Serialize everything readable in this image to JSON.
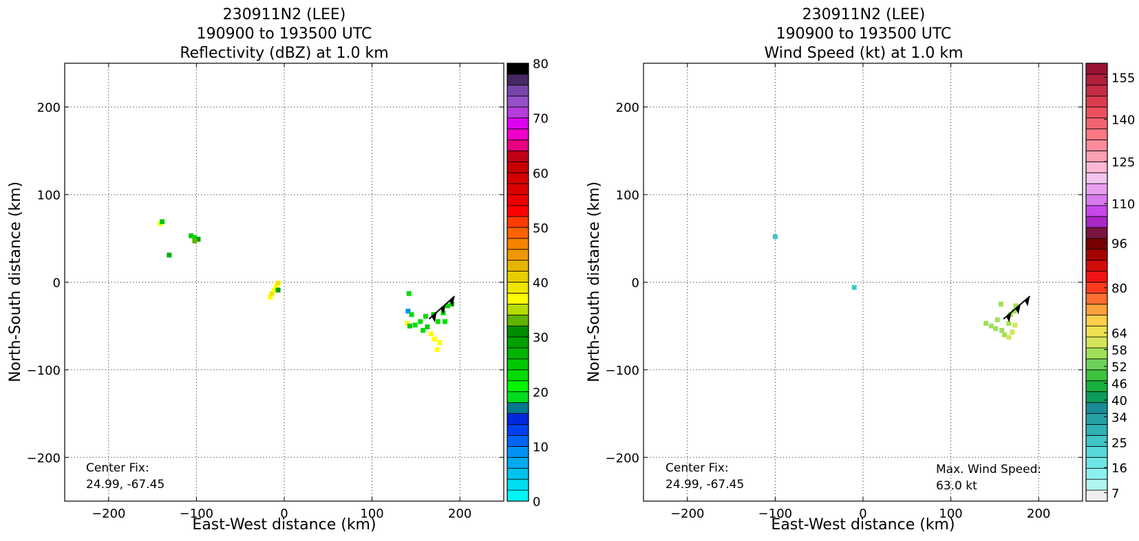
{
  "chart_data": [
    {
      "type": "heatmap",
      "title_lines": [
        "230911N2 (LEE)",
        "190900 to 193500 UTC",
        "Reflectivity (dBZ) at 1.0 km"
      ],
      "xlabel": "East-West distance (km)",
      "ylabel": "North-South distance (km)",
      "xlim": [
        -250,
        250
      ],
      "ylim": [
        -250,
        250
      ],
      "xticks": [
        -200,
        -100,
        0,
        100,
        200
      ],
      "yticks": [
        -200,
        -100,
        0,
        100,
        200
      ],
      "grid": true,
      "annotation_lines": [
        "Center Fix:",
        "24.99, -67.45"
      ],
      "colorbar": {
        "min": 0,
        "max": 80,
        "tick_values": [
          0,
          10,
          20,
          30,
          40,
          50,
          60,
          70,
          80
        ],
        "tick_labels": [
          "0",
          "10",
          "20",
          "30",
          "40",
          "50",
          "60",
          "70",
          "80"
        ],
        "colors": [
          "#00f5f5",
          "#00dcf0",
          "#00c3eb",
          "#00aaf0",
          "#0091f5",
          "#0064f5",
          "#0040f0",
          "#0028dc",
          "#00788c",
          "#00dc1e",
          "#00f500",
          "#00dc00",
          "#00c800",
          "#00b400",
          "#00a000",
          "#008c00",
          "#60b400",
          "#b4dc00",
          "#ffff00",
          "#f0e600",
          "#e6cd00",
          "#e6b400",
          "#f09600",
          "#f58200",
          "#ff6400",
          "#ff3c00",
          "#ff0000",
          "#ee0000",
          "#dd0000",
          "#d20000",
          "#c80000",
          "#c00014",
          "#e6007f",
          "#ee00c8",
          "#dc00f0",
          "#b43cdc",
          "#9650c8",
          "#7846aa",
          "#462864",
          "#000000"
        ]
      },
      "echoes": [
        {
          "x": -141,
          "y": 67,
          "value": 36
        },
        {
          "x": -139,
          "y": 69,
          "value": 24
        },
        {
          "x": -131,
          "y": 31,
          "value": 26
        },
        {
          "x": -106,
          "y": 53,
          "value": 25
        },
        {
          "x": -102,
          "y": 51,
          "value": 22
        },
        {
          "x": -98,
          "y": 49,
          "value": 29
        },
        {
          "x": -102,
          "y": 47,
          "value": 33
        },
        {
          "x": -16,
          "y": -17,
          "value": 36
        },
        {
          "x": -14,
          "y": -13,
          "value": 38
        },
        {
          "x": -11,
          "y": -9,
          "value": 36
        },
        {
          "x": -9,
          "y": -5,
          "value": 36
        },
        {
          "x": -7,
          "y": -1,
          "value": 38
        },
        {
          "x": -7,
          "y": -9,
          "value": 28
        },
        {
          "x": 141,
          "y": -33,
          "value": 9
        },
        {
          "x": 145,
          "y": -37,
          "value": 22
        },
        {
          "x": 140,
          "y": -47,
          "value": 36
        },
        {
          "x": 143,
          "y": -50,
          "value": 24
        },
        {
          "x": 149,
          "y": -49,
          "value": 22
        },
        {
          "x": 155,
          "y": -45,
          "value": 22
        },
        {
          "x": 158,
          "y": -55,
          "value": 22
        },
        {
          "x": 163,
          "y": -51,
          "value": 24
        },
        {
          "x": 167,
          "y": -59,
          "value": 37
        },
        {
          "x": 171,
          "y": -65,
          "value": 36
        },
        {
          "x": 177,
          "y": -69,
          "value": 37
        },
        {
          "x": 174,
          "y": -77,
          "value": 36
        },
        {
          "x": 175,
          "y": -45,
          "value": 22
        },
        {
          "x": 181,
          "y": -35,
          "value": 22
        },
        {
          "x": 186,
          "y": -27,
          "value": 22
        },
        {
          "x": 191,
          "y": -25,
          "value": 24
        },
        {
          "x": 183,
          "y": -45,
          "value": 22
        },
        {
          "x": 170,
          "y": -37,
          "value": 25
        },
        {
          "x": 161,
          "y": -39,
          "value": 22
        },
        {
          "x": 142,
          "y": -13,
          "value": 22
        }
      ],
      "flight_segments": [
        [
          [
            165,
            -42
          ],
          [
            194,
            -16
          ]
        ]
      ]
    },
    {
      "type": "heatmap",
      "title_lines": [
        "230911N2 (LEE)",
        "190900 to 193500 UTC",
        "Wind Speed (kt) at 1.0 km"
      ],
      "xlabel": "East-West distance (km)",
      "ylabel": "North-South distance (km)",
      "xlim": [
        -250,
        250
      ],
      "ylim": [
        -250,
        250
      ],
      "xticks": [
        -200,
        -100,
        0,
        100,
        200
      ],
      "yticks": [
        -200,
        -100,
        0,
        100,
        200
      ],
      "grid": true,
      "annotation_lines": [
        "Center Fix:",
        "24.99, -67.45"
      ],
      "annotation2_lines": [
        "Max. Wind Speed:",
        "63.0 kt"
      ],
      "colorbar": {
        "min": 4,
        "max": 160,
        "tick_values": [
          7,
          16,
          25,
          34,
          40,
          46,
          52,
          58,
          64,
          80,
          96,
          110,
          125,
          140,
          155
        ],
        "tick_labels": [
          "7",
          "16",
          "25",
          "34",
          "40",
          "46",
          "52",
          "58",
          "64",
          "80",
          "96",
          "110",
          "125",
          "140",
          "155"
        ],
        "colors": [
          "#efefef",
          "#b0f4f0",
          "#8ef0ee",
          "#6ee6e6",
          "#58d8da",
          "#40c4c8",
          "#30b0b4",
          "#24a0a6",
          "#1a8c96",
          "#0e9c5c",
          "#18b03e",
          "#3cc43c",
          "#6ed25a",
          "#a0e05a",
          "#d4e45a",
          "#f0e050",
          "#fcd04c",
          "#fca03c",
          "#ff6e32",
          "#ff3c1e",
          "#f01414",
          "#d20a0a",
          "#a50000",
          "#780000",
          "#7a1440",
          "#aa28c8",
          "#c846ec",
          "#d87aee",
          "#e8a0ee",
          "#f2c4ee",
          "#fcb8d4",
          "#fca0b4",
          "#fc8c9c",
          "#fa7882",
          "#f46470",
          "#ec505e",
          "#dc3c4e",
          "#c42d44",
          "#b01e3c",
          "#961432"
        ]
      },
      "echoes": [
        {
          "x": -100,
          "y": 52,
          "value": 26
        },
        {
          "x": -10,
          "y": -6,
          "value": 26
        },
        {
          "x": 140,
          "y": -47,
          "value": 56
        },
        {
          "x": 146,
          "y": -50,
          "value": 57
        },
        {
          "x": 151,
          "y": -53,
          "value": 57
        },
        {
          "x": 158,
          "y": -55,
          "value": 56
        },
        {
          "x": 161,
          "y": -60,
          "value": 58
        },
        {
          "x": 166,
          "y": -63,
          "value": 60
        },
        {
          "x": 170,
          "y": -57,
          "value": 59
        },
        {
          "x": 166,
          "y": -47,
          "value": 58
        },
        {
          "x": 173,
          "y": -49,
          "value": 60
        },
        {
          "x": 153,
          "y": -43,
          "value": 56
        },
        {
          "x": 157,
          "y": -25,
          "value": 56
        },
        {
          "x": 172,
          "y": -33,
          "value": 57
        },
        {
          "x": 174,
          "y": -27,
          "value": 56
        },
        {
          "x": 168,
          "y": -37,
          "value": 56
        }
      ],
      "flight_segments": [
        [
          [
            160,
            -42
          ],
          [
            190,
            -16
          ]
        ]
      ]
    }
  ]
}
